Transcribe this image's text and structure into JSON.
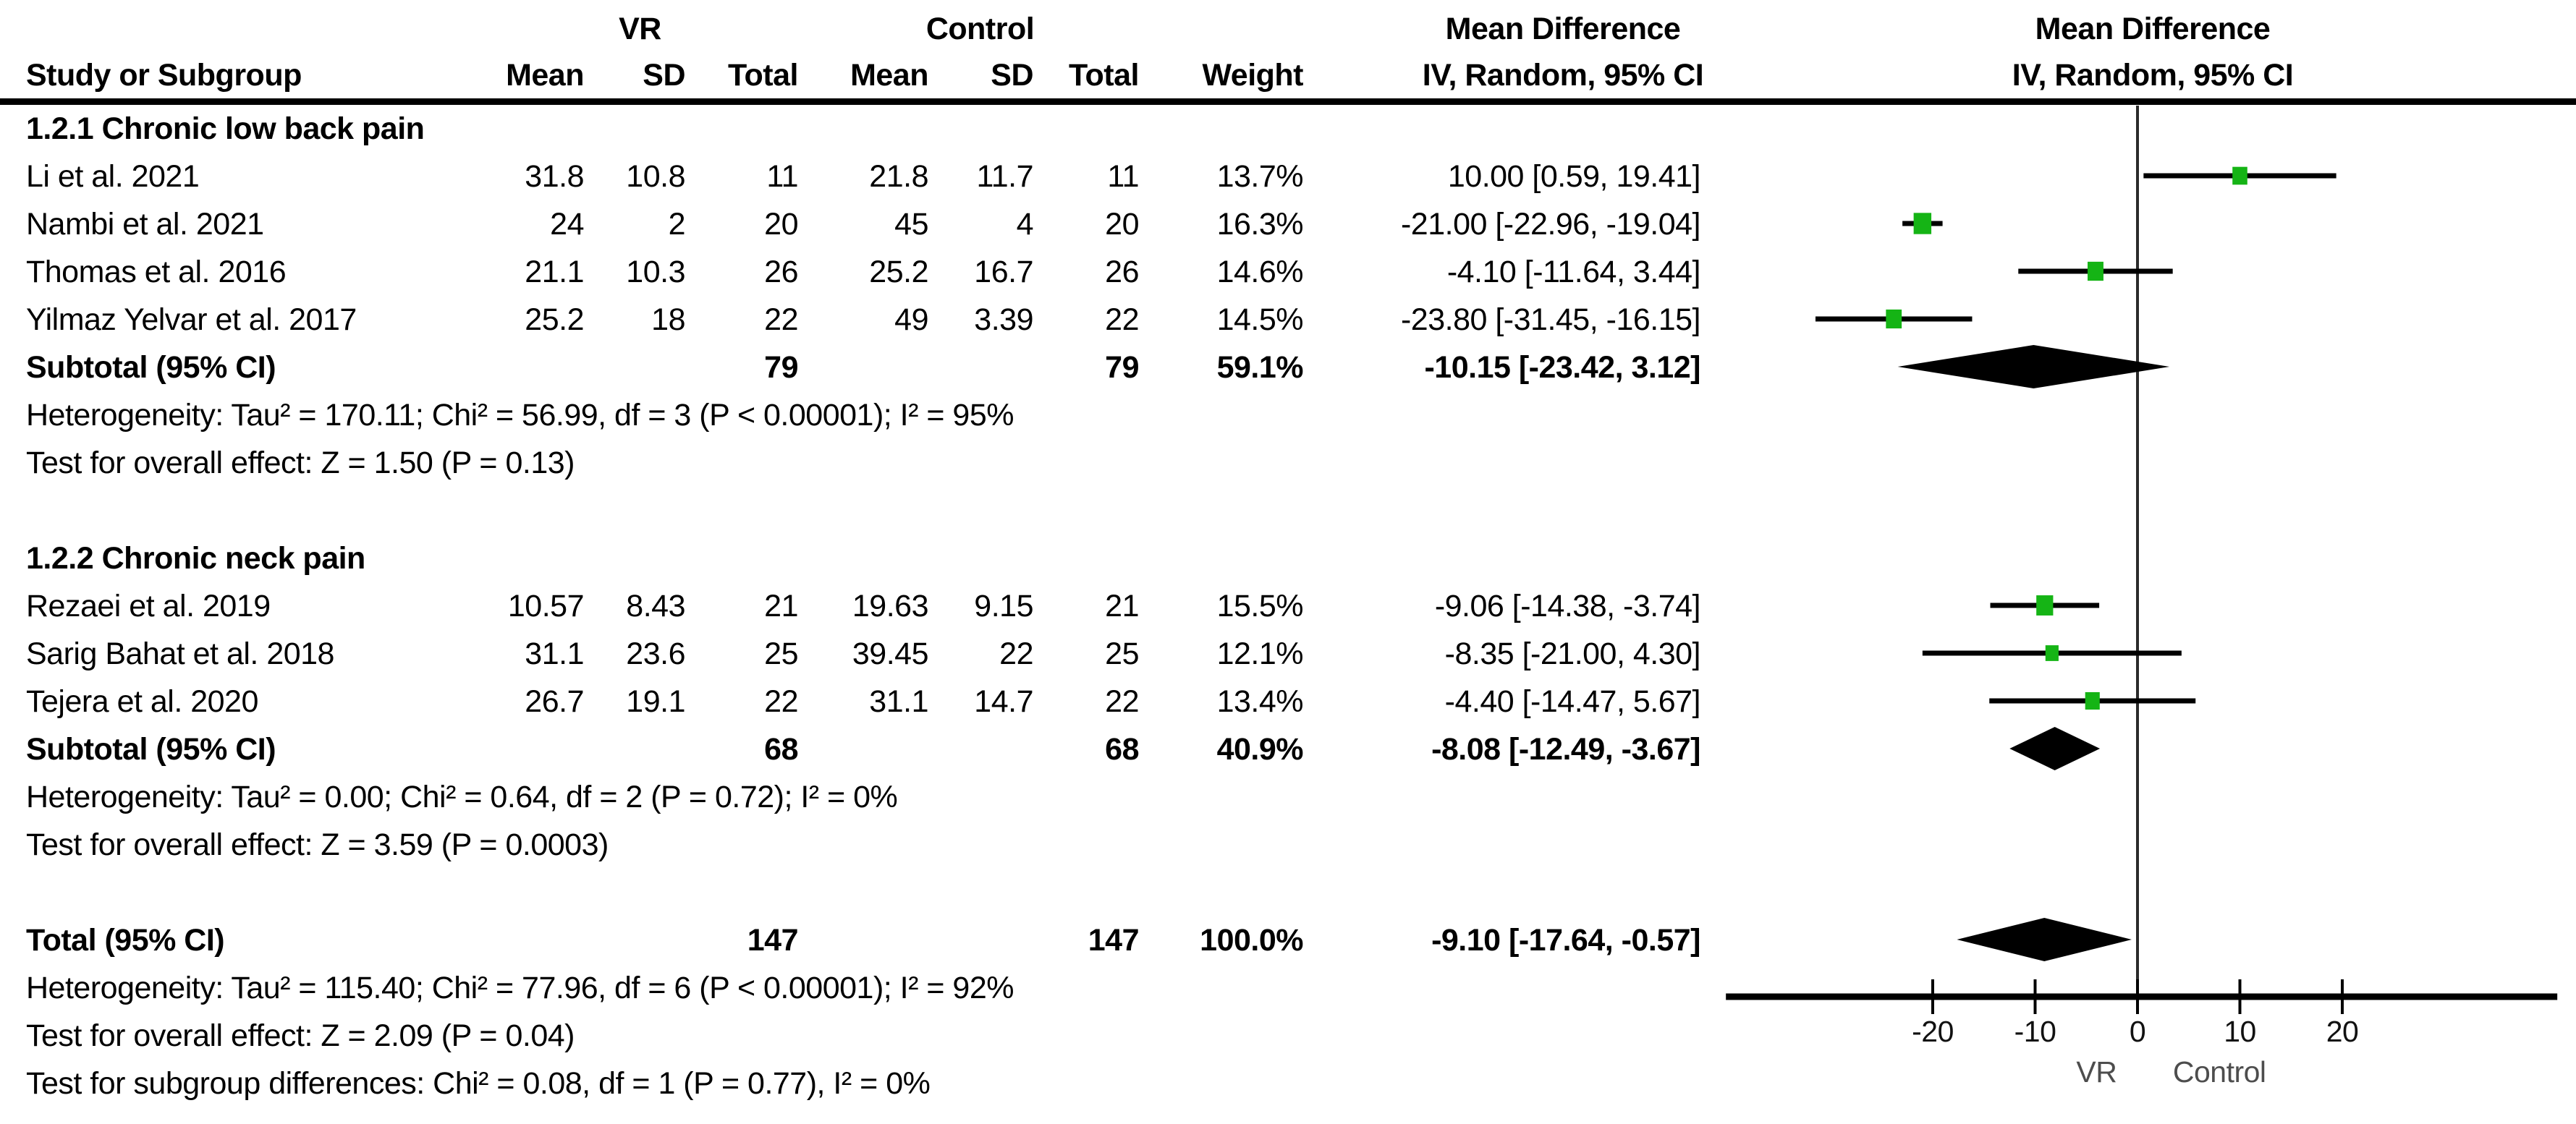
{
  "header": {
    "group_vr": "VR",
    "group_control": "Control",
    "md_left": "Mean Difference",
    "md_right": "Mean Difference",
    "study": "Study or Subgroup",
    "mean": "Mean",
    "sd": "SD",
    "total": "Total",
    "mean2": "Mean",
    "sd2": "SD",
    "total2": "Total",
    "weight": "Weight",
    "iv_left": "IV, Random, 95% CI",
    "iv_right": "IV, Random, 95% CI"
  },
  "sections": {
    "s1": "1.2.1 Chronic low back pain",
    "s2": "1.2.2 Chronic neck pain"
  },
  "rows": {
    "li": {
      "name": "Li et al. 2021",
      "vr_mean": "31.8",
      "vr_sd": "10.8",
      "vr_total": "11",
      "c_mean": "21.8",
      "c_sd": "11.7",
      "c_total": "11",
      "weight": "13.7%",
      "ci": "10.00 [0.59, 19.41]"
    },
    "nambi": {
      "name": "Nambi et al. 2021",
      "vr_mean": "24",
      "vr_sd": "2",
      "vr_total": "20",
      "c_mean": "45",
      "c_sd": "4",
      "c_total": "20",
      "weight": "16.3%",
      "ci": "-21.00 [-22.96, -19.04]"
    },
    "thomas": {
      "name": "Thomas et al. 2016",
      "vr_mean": "21.1",
      "vr_sd": "10.3",
      "vr_total": "26",
      "c_mean": "25.2",
      "c_sd": "16.7",
      "c_total": "26",
      "weight": "14.6%",
      "ci": "-4.10 [-11.64, 3.44]"
    },
    "yilmaz": {
      "name": "Yilmaz Yelvar et al. 2017",
      "vr_mean": "25.2",
      "vr_sd": "18",
      "vr_total": "22",
      "c_mean": "49",
      "c_sd": "3.39",
      "c_total": "22",
      "weight": "14.5%",
      "ci": "-23.80 [-31.45, -16.15]"
    },
    "rezaei": {
      "name": "Rezaei et al. 2019",
      "vr_mean": "10.57",
      "vr_sd": "8.43",
      "vr_total": "21",
      "c_mean": "19.63",
      "c_sd": "9.15",
      "c_total": "21",
      "weight": "15.5%",
      "ci": "-9.06 [-14.38, -3.74]"
    },
    "sarig": {
      "name": "Sarig Bahat et al. 2018",
      "vr_mean": "31.1",
      "vr_sd": "23.6",
      "vr_total": "25",
      "c_mean": "39.45",
      "c_sd": "22",
      "c_total": "25",
      "weight": "12.1%",
      "ci": "-8.35 [-21.00, 4.30]"
    },
    "tejera": {
      "name": "Tejera et al. 2020",
      "vr_mean": "26.7",
      "vr_sd": "19.1",
      "vr_total": "22",
      "c_mean": "31.1",
      "c_sd": "14.7",
      "c_total": "22",
      "weight": "13.4%",
      "ci": "-4.40 [-14.47, 5.67]"
    }
  },
  "subtotals": {
    "s1": {
      "label": "Subtotal (95% CI)",
      "vr_total": "79",
      "c_total": "79",
      "weight": "59.1%",
      "ci": "-10.15 [-23.42, 3.12]"
    },
    "s2": {
      "label": "Subtotal (95% CI)",
      "vr_total": "68",
      "c_total": "68",
      "weight": "40.9%",
      "ci": "-8.08 [-12.49, -3.67]"
    },
    "total": {
      "label": "Total (95% CI)",
      "vr_total": "147",
      "c_total": "147",
      "weight": "100.0%",
      "ci": "-9.10 [-17.64, -0.57]"
    }
  },
  "stats": {
    "s1_het": "Heterogeneity: Tau² = 170.11; Chi² = 56.99, df = 3 (P < 0.00001); I² = 95%",
    "s1_test": "Test for overall effect: Z = 1.50 (P = 0.13)",
    "s2_het": "Heterogeneity: Tau² = 0.00; Chi² = 0.64, df = 2 (P = 0.72); I² = 0%",
    "s2_test": "Test for overall effect: Z = 3.59 (P = 0.0003)",
    "tot_het": "Heterogeneity: Tau² = 115.40; Chi² = 77.96, df = 6 (P < 0.00001); I² = 92%",
    "tot_test": "Test for overall effect: Z = 2.09 (P = 0.04)",
    "tot_subdiff": "Test for subgroup differences: Chi² = 0.08, df = 1 (P = 0.77), I² = 0%"
  },
  "chart_data": {
    "type": "scatter",
    "subtype": "forest-plot",
    "title": "Mean Difference, IV, Random, 95% CI — VR vs Control",
    "marker_color": "#15b415",
    "ci_color": "#000000",
    "diamond_color": "#000000",
    "x_axis": {
      "ticks": [
        -20,
        -10,
        0,
        10,
        20
      ],
      "tick_labels": [
        "-20",
        "-10",
        "0",
        "10",
        "20"
      ],
      "xlim": [
        -40.2,
        41.0
      ],
      "zero_line": 0,
      "left_label": "VR",
      "right_label": "Control"
    },
    "studies": [
      {
        "name": "Li et al. 2021",
        "row": 1,
        "mean": 10.0,
        "ci_low": 0.59,
        "ci_high": 19.41,
        "weight_pct": 13.7
      },
      {
        "name": "Nambi et al. 2021",
        "row": 2,
        "mean": -21.0,
        "ci_low": -22.96,
        "ci_high": -19.04,
        "weight_pct": 16.3
      },
      {
        "name": "Thomas et al. 2016",
        "row": 3,
        "mean": -4.1,
        "ci_low": -11.64,
        "ci_high": 3.44,
        "weight_pct": 14.6
      },
      {
        "name": "Yilmaz Yelvar et al. 2017",
        "row": 4,
        "mean": -23.8,
        "ci_low": -31.45,
        "ci_high": -16.15,
        "weight_pct": 14.5
      },
      {
        "name": "Rezaei et al. 2019",
        "row": 10,
        "mean": -9.06,
        "ci_low": -14.38,
        "ci_high": -3.74,
        "weight_pct": 15.5
      },
      {
        "name": "Sarig Bahat et al. 2018",
        "row": 11,
        "mean": -8.35,
        "ci_low": -21.0,
        "ci_high": 4.3,
        "weight_pct": 12.1
      },
      {
        "name": "Tejera et al. 2020",
        "row": 12,
        "mean": -4.4,
        "ci_low": -14.47,
        "ci_high": 5.67,
        "weight_pct": 13.4
      }
    ],
    "diamonds": [
      {
        "name": "Subtotal chronic low back pain",
        "row": 5,
        "center": -10.15,
        "ci_low": -23.42,
        "ci_high": 3.12
      },
      {
        "name": "Subtotal chronic neck pain",
        "row": 13,
        "center": -8.08,
        "ci_low": -12.49,
        "ci_high": -3.67
      },
      {
        "name": "Total",
        "row": 17,
        "center": -9.1,
        "ci_low": -17.64,
        "ci_high": -0.57
      }
    ]
  }
}
